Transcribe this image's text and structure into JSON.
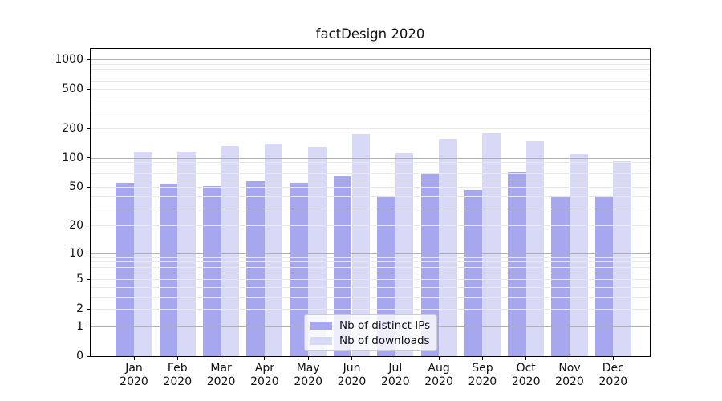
{
  "figure": {
    "title": "factDesign 2020"
  },
  "chart_data": {
    "type": "bar",
    "title": "factDesign 2020",
    "categories": [
      "Jan",
      "Feb",
      "Mar",
      "Apr",
      "May",
      "Jun",
      "Jul",
      "Aug",
      "Sep",
      "Oct",
      "Nov",
      "Dec"
    ],
    "year_label": "2020",
    "series": [
      {
        "name": "Nb of distinct IPs",
        "color": "#a7a7f0",
        "values": [
          56,
          54,
          51,
          58,
          55,
          65,
          40,
          70,
          47,
          71,
          39,
          40
        ]
      },
      {
        "name": "Nb of downloads",
        "color": "#d8d8f7",
        "values": [
          115,
          115,
          132,
          141,
          129,
          176,
          111,
          157,
          178,
          149,
          110,
          92
        ]
      }
    ],
    "xlabel": "",
    "ylabel": "",
    "y_scale": "log1p",
    "ylim": [
      0,
      1270
    ],
    "y_ticks": [
      0,
      1,
      2,
      5,
      10,
      20,
      50,
      100,
      200,
      500,
      1000
    ],
    "y_major_gridlines": [
      1,
      10,
      100,
      1000
    ],
    "y_minor_gridlines": [
      2,
      3,
      4,
      5,
      6,
      7,
      8,
      9,
      20,
      30,
      40,
      50,
      60,
      70,
      80,
      90,
      200,
      300,
      400,
      500,
      600,
      700,
      800,
      900
    ],
    "grid_on": true,
    "legend_position": "lower center"
  },
  "colors": {
    "major_grid": "#b0b0b0",
    "minor_grid": "#e8e8e8",
    "axis": "#000000",
    "text": "#111111",
    "legend_border": "#cccccc",
    "legend_bg": "rgba(255,255,255,0.8)"
  }
}
